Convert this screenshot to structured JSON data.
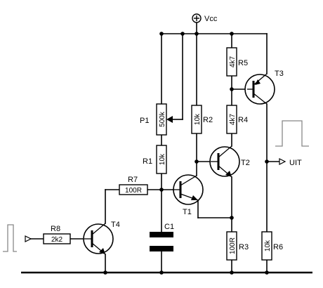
{
  "supply": {
    "label": "Vcc",
    "symbol": "⊕"
  },
  "output": {
    "label": "UIT"
  },
  "components": {
    "P1": {
      "ref": "P1",
      "value": "500k"
    },
    "R1": {
      "ref": "R1",
      "value": "10k"
    },
    "R2": {
      "ref": "R2",
      "value": "10k"
    },
    "R3": {
      "ref": "R3",
      "value": "100R"
    },
    "R4": {
      "ref": "R4",
      "value": "4k7"
    },
    "R5": {
      "ref": "R5",
      "value": "4k7"
    },
    "R6": {
      "ref": "R6",
      "value": "10k"
    },
    "R7": {
      "ref": "R7",
      "value": "100R"
    },
    "R8": {
      "ref": "R8",
      "value": "2k2"
    },
    "C1": {
      "ref": "C1"
    },
    "T1": {
      "ref": "T1"
    },
    "T2": {
      "ref": "T2"
    },
    "T3": {
      "ref": "T3"
    },
    "T4": {
      "ref": "T4"
    }
  }
}
